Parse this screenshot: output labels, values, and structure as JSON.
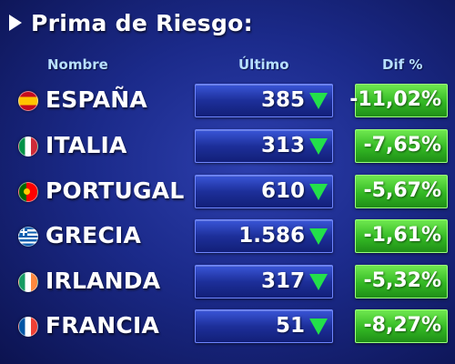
{
  "header": {
    "title": "Prima de Riesgo:",
    "icon": "play-icon"
  },
  "columns": {
    "name": "Nombre",
    "last": "Último",
    "change": "Dif %"
  },
  "colors": {
    "background": "#1b2a8a",
    "down_arrow": "#23e04a",
    "change_box": "#33b924"
  },
  "rows": [
    {
      "country": "ESPAÑA",
      "flag": "spain-flag-icon",
      "last": "385",
      "change": "-11,02%",
      "trend": "down"
    },
    {
      "country": "ITALIA",
      "flag": "italy-flag-icon",
      "last": "313",
      "change": "-7,65%",
      "trend": "down"
    },
    {
      "country": "PORTUGAL",
      "flag": "portugal-flag-icon",
      "last": "610",
      "change": "-5,67%",
      "trend": "down"
    },
    {
      "country": "GRECIA",
      "flag": "greece-flag-icon",
      "last": "1.586",
      "change": "-1,61%",
      "trend": "down"
    },
    {
      "country": "IRLANDA",
      "flag": "ireland-flag-icon",
      "last": "317",
      "change": "-5,32%",
      "trend": "down"
    },
    {
      "country": "FRANCIA",
      "flag": "france-flag-icon",
      "last": "51",
      "change": "-8,27%",
      "trend": "down"
    }
  ]
}
